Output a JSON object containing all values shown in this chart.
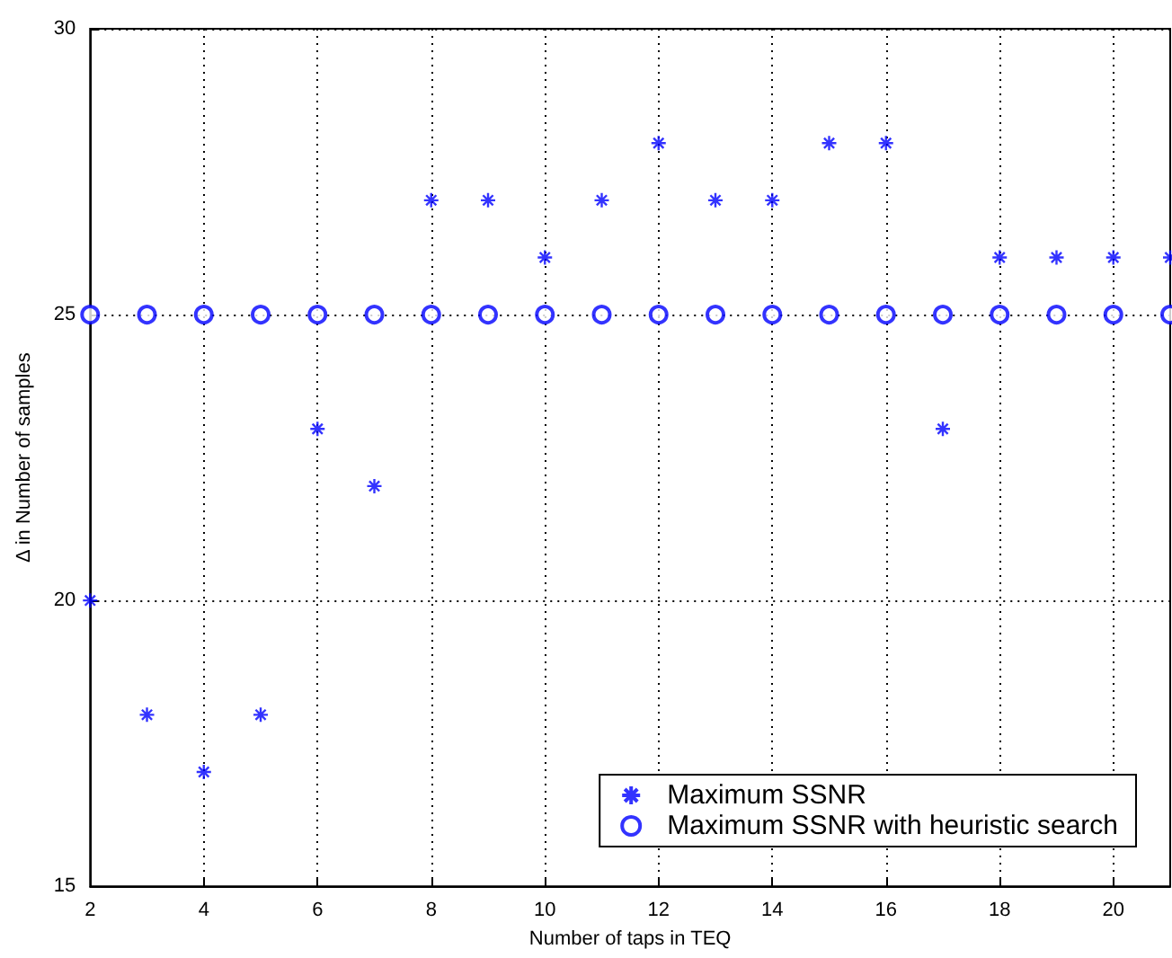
{
  "chart_data": {
    "type": "scatter",
    "xlabel": "Number of taps in TEQ",
    "ylabel": "Δ in Number of samples",
    "x": [
      2,
      3,
      4,
      5,
      6,
      7,
      8,
      9,
      10,
      11,
      12,
      13,
      14,
      15,
      16,
      17,
      18,
      19,
      20,
      21
    ],
    "series": [
      {
        "name": "Maximum SSNR",
        "color": "#0000ff",
        "marker": "cross",
        "values": [
          20,
          18,
          17,
          18,
          23,
          22,
          27,
          27,
          26,
          27,
          28,
          27,
          27,
          28,
          28,
          23,
          26,
          26,
          26,
          26
        ]
      },
      {
        "name": "Maximum SSNR with heuristic search",
        "color": "#0000ff",
        "marker": "circle",
        "values": [
          25,
          25,
          25,
          25,
          25,
          25,
          25,
          25,
          25,
          25,
          25,
          25,
          25,
          25,
          25,
          25,
          25,
          25,
          25,
          25
        ]
      }
    ],
    "xlim": [
      2,
      21
    ],
    "xticks": [
      2,
      4,
      6,
      8,
      10,
      12,
      14,
      16,
      18,
      20
    ],
    "ylim": [
      15,
      30
    ],
    "yticks": [
      15,
      20,
      25,
      30
    ],
    "grid": true,
    "legend": "bottom right"
  }
}
